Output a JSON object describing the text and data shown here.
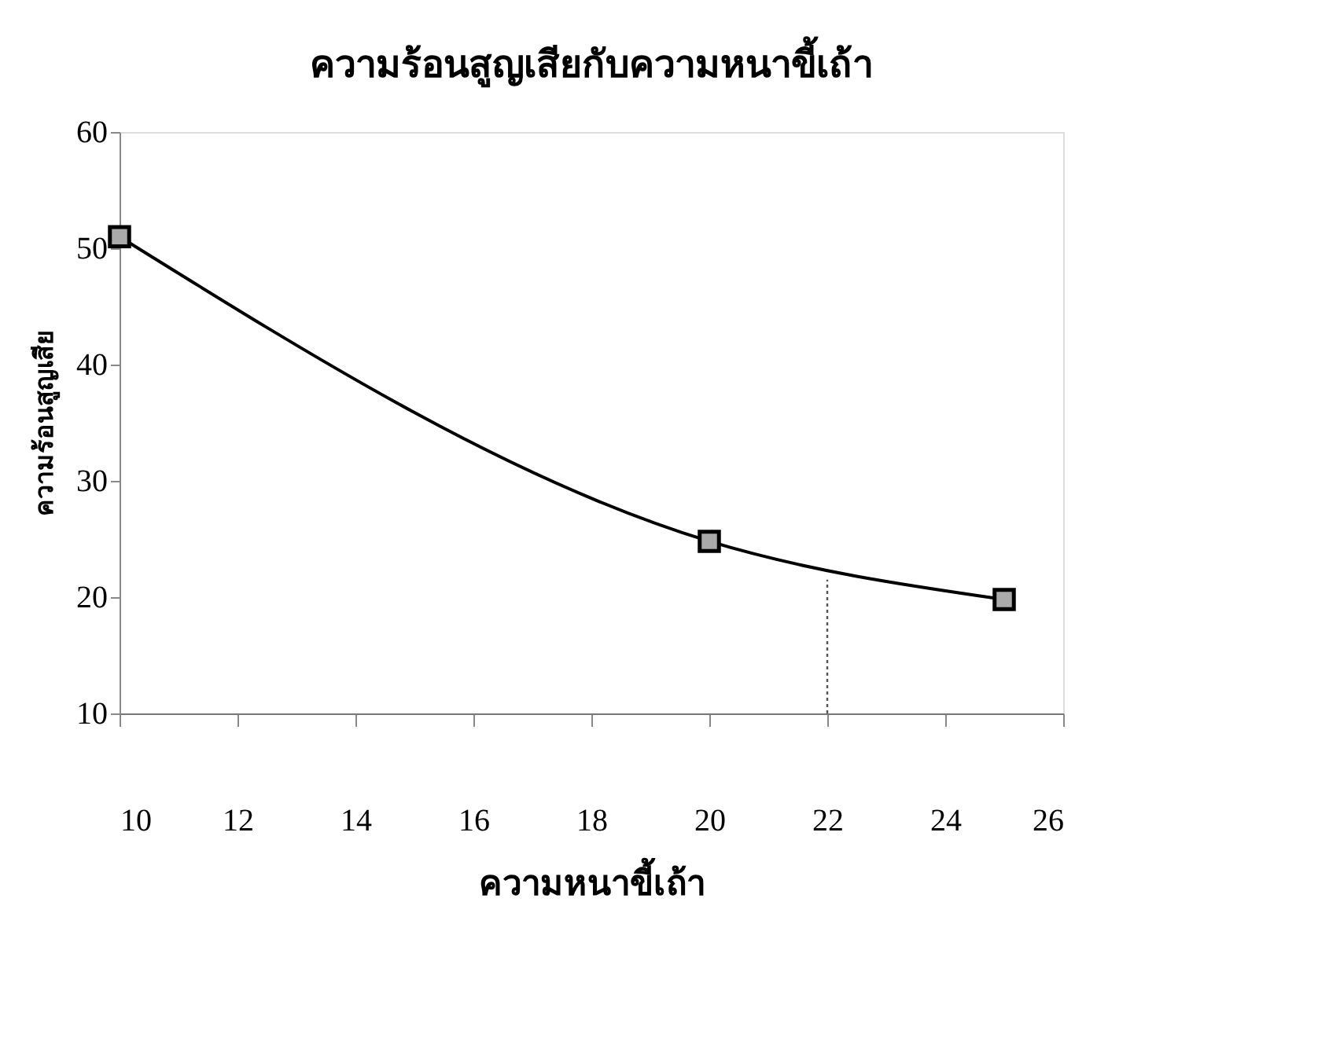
{
  "chart_data": {
    "type": "line",
    "title": "ความร้อนสูญเสียกับความหนาขี้เถ้า",
    "xlabel": "ความหนาขี้เถ้า",
    "ylabel": "ความร้อนสูญเสีย",
    "xlim": [
      10,
      26
    ],
    "xticks": [
      10,
      12,
      14,
      16,
      18,
      20,
      22,
      24,
      26
    ],
    "ylim": [
      10,
      60
    ],
    "yticks": [
      10,
      20,
      30,
      40,
      50,
      60
    ],
    "grid": false,
    "marker": "square",
    "line_style": "solid",
    "series": [
      {
        "color": "#000000",
        "x": [
          10,
          20,
          25
        ],
        "values": [
          51,
          24.8,
          19.8
        ]
      },
      {
        "color": "#555555",
        "x": [
          22,
          22
        ],
        "values": [
          10,
          21.5
        ],
        "marker": "none",
        "line_style": "dotted"
      }
    ]
  }
}
